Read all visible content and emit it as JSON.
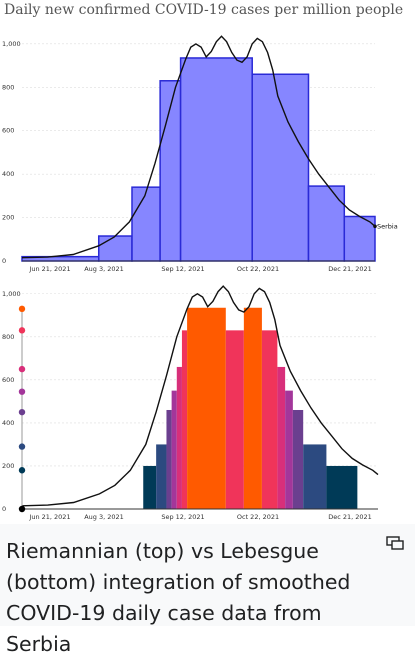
{
  "chart_data": [
    {
      "type": "bar",
      "title": "Daily new confirmed COVID-19 cases per million people",
      "x_tick_labels": [
        "Jun 21, 2021",
        "Aug 3, 2021",
        "Sep 12, 2021",
        "Oct 22, 2021",
        "Dec 21, 2021"
      ],
      "y_tick_labels": [
        "0",
        "200",
        "400",
        "600",
        "800",
        "1,000"
      ],
      "ylim": [
        0,
        1050
      ],
      "series_label": "Serbia",
      "bars": [
        {
          "x_start": 0.0,
          "x_end": 0.3,
          "value": 20
        },
        {
          "x_start": 0.3,
          "x_end": 0.43,
          "value": 115
        },
        {
          "x_start": 0.43,
          "x_end": 0.54,
          "value": 340
        },
        {
          "x_start": 0.54,
          "x_end": 0.62,
          "value": 830
        },
        {
          "x_start": 0.62,
          "x_end": 0.9,
          "value": 935
        },
        {
          "x_start": 0.9,
          "x_end": 1.12,
          "value": 860
        },
        {
          "x_start": 1.12,
          "x_end": 1.26,
          "value": 345
        },
        {
          "x_start": 1.26,
          "x_end": 1.38,
          "value": 205
        }
      ],
      "bar_color": "#8080ff",
      "curve": [
        [
          0.0,
          15
        ],
        [
          0.1,
          18
        ],
        [
          0.2,
          30
        ],
        [
          0.3,
          70
        ],
        [
          0.36,
          110
        ],
        [
          0.42,
          180
        ],
        [
          0.48,
          300
        ],
        [
          0.52,
          450
        ],
        [
          0.56,
          620
        ],
        [
          0.6,
          800
        ],
        [
          0.64,
          930
        ],
        [
          0.66,
          985
        ],
        [
          0.68,
          1000
        ],
        [
          0.7,
          985
        ],
        [
          0.72,
          940
        ],
        [
          0.74,
          965
        ],
        [
          0.76,
          1010
        ],
        [
          0.78,
          1035
        ],
        [
          0.8,
          1010
        ],
        [
          0.82,
          960
        ],
        [
          0.84,
          925
        ],
        [
          0.86,
          915
        ],
        [
          0.88,
          940
        ],
        [
          0.9,
          1000
        ],
        [
          0.92,
          1025
        ],
        [
          0.94,
          1010
        ],
        [
          0.96,
          960
        ],
        [
          0.98,
          880
        ],
        [
          1.0,
          760
        ],
        [
          1.04,
          640
        ],
        [
          1.08,
          550
        ],
        [
          1.12,
          470
        ],
        [
          1.16,
          400
        ],
        [
          1.2,
          340
        ],
        [
          1.24,
          280
        ],
        [
          1.28,
          235
        ],
        [
          1.32,
          205
        ],
        [
          1.36,
          180
        ],
        [
          1.38,
          160
        ]
      ]
    },
    {
      "type": "bar",
      "x_tick_labels": [
        "Jun 21, 2021",
        "Aug 3, 2021",
        "Sep 12, 2021",
        "Oct 22, 2021",
        "Dec 21, 2021"
      ],
      "y_tick_labels": [
        "0",
        "200",
        "400",
        "600",
        "800",
        "1,000"
      ],
      "ylim": [
        0,
        1050
      ],
      "levels": [
        {
          "value": 0,
          "color": "#000000"
        },
        {
          "value": 200,
          "color": "#003a57"
        },
        {
          "value": 300,
          "color": "#2c4a80"
        },
        {
          "value": 460,
          "color": "#6b3f8f"
        },
        {
          "value": 550,
          "color": "#a3369a"
        },
        {
          "value": 660,
          "color": "#d82f7a"
        },
        {
          "value": 830,
          "color": "#f0345a"
        },
        {
          "value": 935,
          "color": "#ff5a00"
        }
      ],
      "marker_values": [
        0,
        180,
        290,
        450,
        545,
        650,
        830,
        930
      ],
      "bars": [
        {
          "x_start": 0.47,
          "x_end": 0.52,
          "value": 200,
          "color": "#003a57"
        },
        {
          "x_start": 0.52,
          "x_end": 0.56,
          "value": 300,
          "color": "#2c4a80"
        },
        {
          "x_start": 0.56,
          "x_end": 0.58,
          "value": 460,
          "color": "#6b3f8f"
        },
        {
          "x_start": 0.58,
          "x_end": 0.6,
          "value": 550,
          "color": "#a3369a"
        },
        {
          "x_start": 0.6,
          "x_end": 0.62,
          "value": 660,
          "color": "#d82f7a"
        },
        {
          "x_start": 0.62,
          "x_end": 0.64,
          "value": 830,
          "color": "#f0345a"
        },
        {
          "x_start": 0.64,
          "x_end": 0.79,
          "value": 935,
          "color": "#ff5a00"
        },
        {
          "x_start": 0.79,
          "x_end": 0.86,
          "value": 830,
          "color": "#f0345a"
        },
        {
          "x_start": 0.86,
          "x_end": 0.93,
          "value": 935,
          "color": "#ff5a00"
        },
        {
          "x_start": 0.93,
          "x_end": 0.99,
          "value": 830,
          "color": "#f0345a"
        },
        {
          "x_start": 0.99,
          "x_end": 1.02,
          "value": 660,
          "color": "#d82f7a"
        },
        {
          "x_start": 1.02,
          "x_end": 1.05,
          "value": 550,
          "color": "#a3369a"
        },
        {
          "x_start": 1.05,
          "x_end": 1.09,
          "value": 460,
          "color": "#6b3f8f"
        },
        {
          "x_start": 1.09,
          "x_end": 1.18,
          "value": 300,
          "color": "#2c4a80"
        },
        {
          "x_start": 1.18,
          "x_end": 1.3,
          "value": 200,
          "color": "#003a57"
        }
      ],
      "curve": [
        [
          0.0,
          15
        ],
        [
          0.1,
          18
        ],
        [
          0.2,
          30
        ],
        [
          0.3,
          70
        ],
        [
          0.36,
          110
        ],
        [
          0.42,
          180
        ],
        [
          0.48,
          300
        ],
        [
          0.52,
          450
        ],
        [
          0.56,
          620
        ],
        [
          0.6,
          800
        ],
        [
          0.64,
          930
        ],
        [
          0.66,
          985
        ],
        [
          0.68,
          1000
        ],
        [
          0.7,
          985
        ],
        [
          0.72,
          940
        ],
        [
          0.74,
          965
        ],
        [
          0.76,
          1010
        ],
        [
          0.78,
          1035
        ],
        [
          0.8,
          1010
        ],
        [
          0.82,
          960
        ],
        [
          0.84,
          925
        ],
        [
          0.86,
          915
        ],
        [
          0.88,
          940
        ],
        [
          0.9,
          1000
        ],
        [
          0.92,
          1025
        ],
        [
          0.94,
          1010
        ],
        [
          0.96,
          960
        ],
        [
          0.98,
          880
        ],
        [
          1.0,
          760
        ],
        [
          1.04,
          640
        ],
        [
          1.08,
          550
        ],
        [
          1.12,
          470
        ],
        [
          1.16,
          400
        ],
        [
          1.2,
          340
        ],
        [
          1.24,
          280
        ],
        [
          1.28,
          235
        ],
        [
          1.32,
          205
        ],
        [
          1.36,
          180
        ],
        [
          1.38,
          160
        ]
      ]
    }
  ],
  "caption": "Riemannian (top) vs Lebesgue (bottom) integration of smoothed COVID-19 daily case data from Serbia",
  "enlarge_icon": "enlarge-icon"
}
